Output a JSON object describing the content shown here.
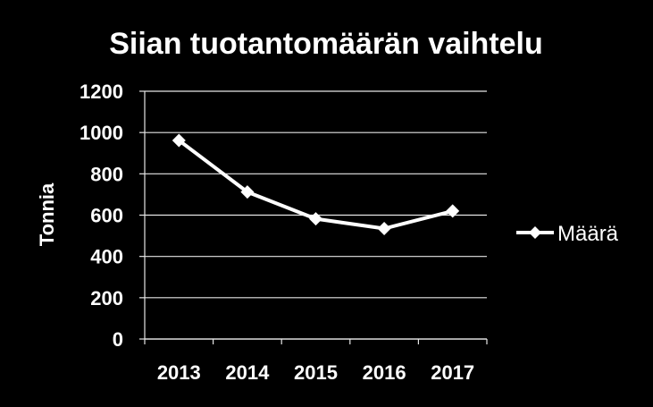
{
  "chart_data": {
    "type": "line",
    "title": "Siian tuotantomäärän vaihtelu",
    "ylabel": "Tonnia",
    "xlabel": "",
    "categories": [
      "2013",
      "2014",
      "2015",
      "2016",
      "2017"
    ],
    "series": [
      {
        "name": "Määrä",
        "values": [
          962,
          712,
          582,
          535,
          620
        ],
        "color": "#ffffff",
        "marker": "diamond"
      }
    ],
    "ylim": [
      0,
      1200
    ],
    "yticks": [
      0,
      200,
      400,
      600,
      800,
      1000,
      1200
    ],
    "grid": true,
    "legend": "right",
    "colors": {
      "background": "#000000",
      "foreground": "#ffffff"
    }
  }
}
